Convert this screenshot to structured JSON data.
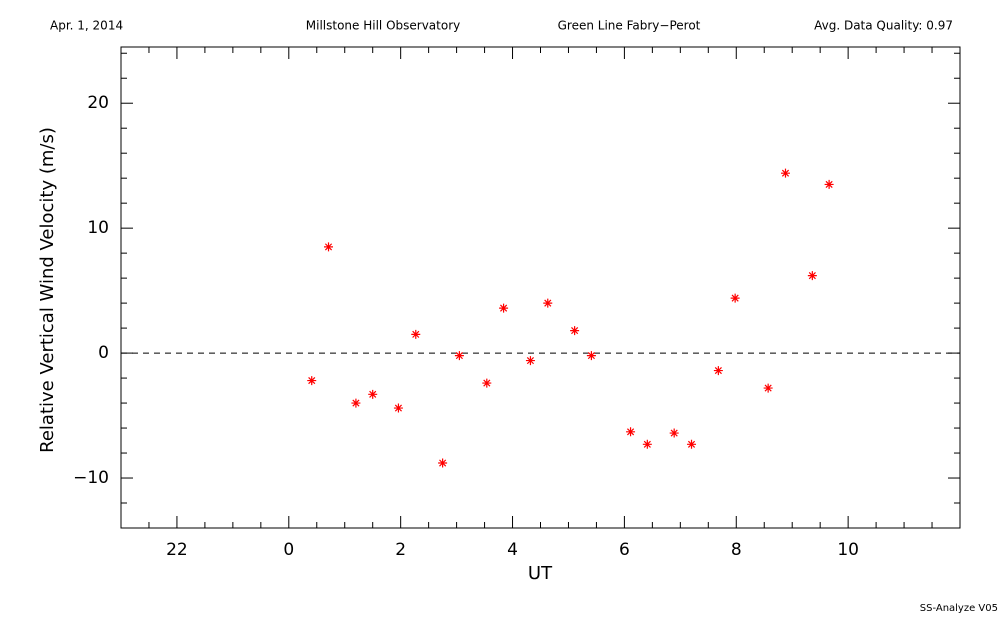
{
  "chart_data": {
    "type": "scatter",
    "title": "Millstone Hill Observatory",
    "subtitle": "Green Line Fabry−Perot",
    "annotations": [
      "Apr. 1, 2014",
      "Avg. Data Quality: 0.97",
      "SS-Analyze V05"
    ],
    "x_label": "UT",
    "y_label": "Relative Vertical Wind Velocity (m/s)",
    "xlim": [
      -3,
      12
    ],
    "ylim": [
      -14,
      24.5
    ],
    "xticks": [
      {
        "value": -2,
        "label": "22"
      },
      0,
      2,
      4,
      6,
      8,
      10
    ],
    "yticks": [
      {
        "value": -10,
        "label": "−10"
      },
      0,
      10,
      20
    ],
    "xminorticks": [
      -2.5,
      -1.5,
      -1,
      -0.5,
      0.5,
      1,
      1.5,
      2.5,
      3,
      3.5,
      4.5,
      5,
      5.5,
      6.5,
      7,
      7.5,
      8.5,
      9,
      9.5,
      10.5,
      11,
      11.5
    ],
    "yminorticks": [
      -12,
      -8,
      -6,
      -4,
      -2,
      2,
      4,
      6,
      8,
      12,
      14,
      16,
      18,
      22,
      24
    ],
    "reference_line": 0,
    "grid": false,
    "series": [
      {
        "color": "#ff0000",
        "x": [
          0.41,
          0.71,
          1.2,
          1.5,
          1.96,
          2.27,
          2.75,
          3.05,
          3.54,
          3.84,
          4.32,
          4.63,
          5.11,
          5.41,
          6.11,
          6.41,
          6.89,
          7.2,
          7.68,
          7.98,
          8.57,
          8.88,
          9.36,
          9.66
        ],
        "values": [
          -2.2,
          8.5,
          -4.0,
          -3.3,
          -4.4,
          1.5,
          -8.8,
          -0.2,
          -2.4,
          3.6,
          -0.6,
          4.0,
          1.8,
          -0.2,
          -6.3,
          -7.3,
          -6.4,
          -7.3,
          -1.4,
          4.4,
          -2.8,
          14.4,
          6.2,
          13.5
        ]
      }
    ]
  }
}
